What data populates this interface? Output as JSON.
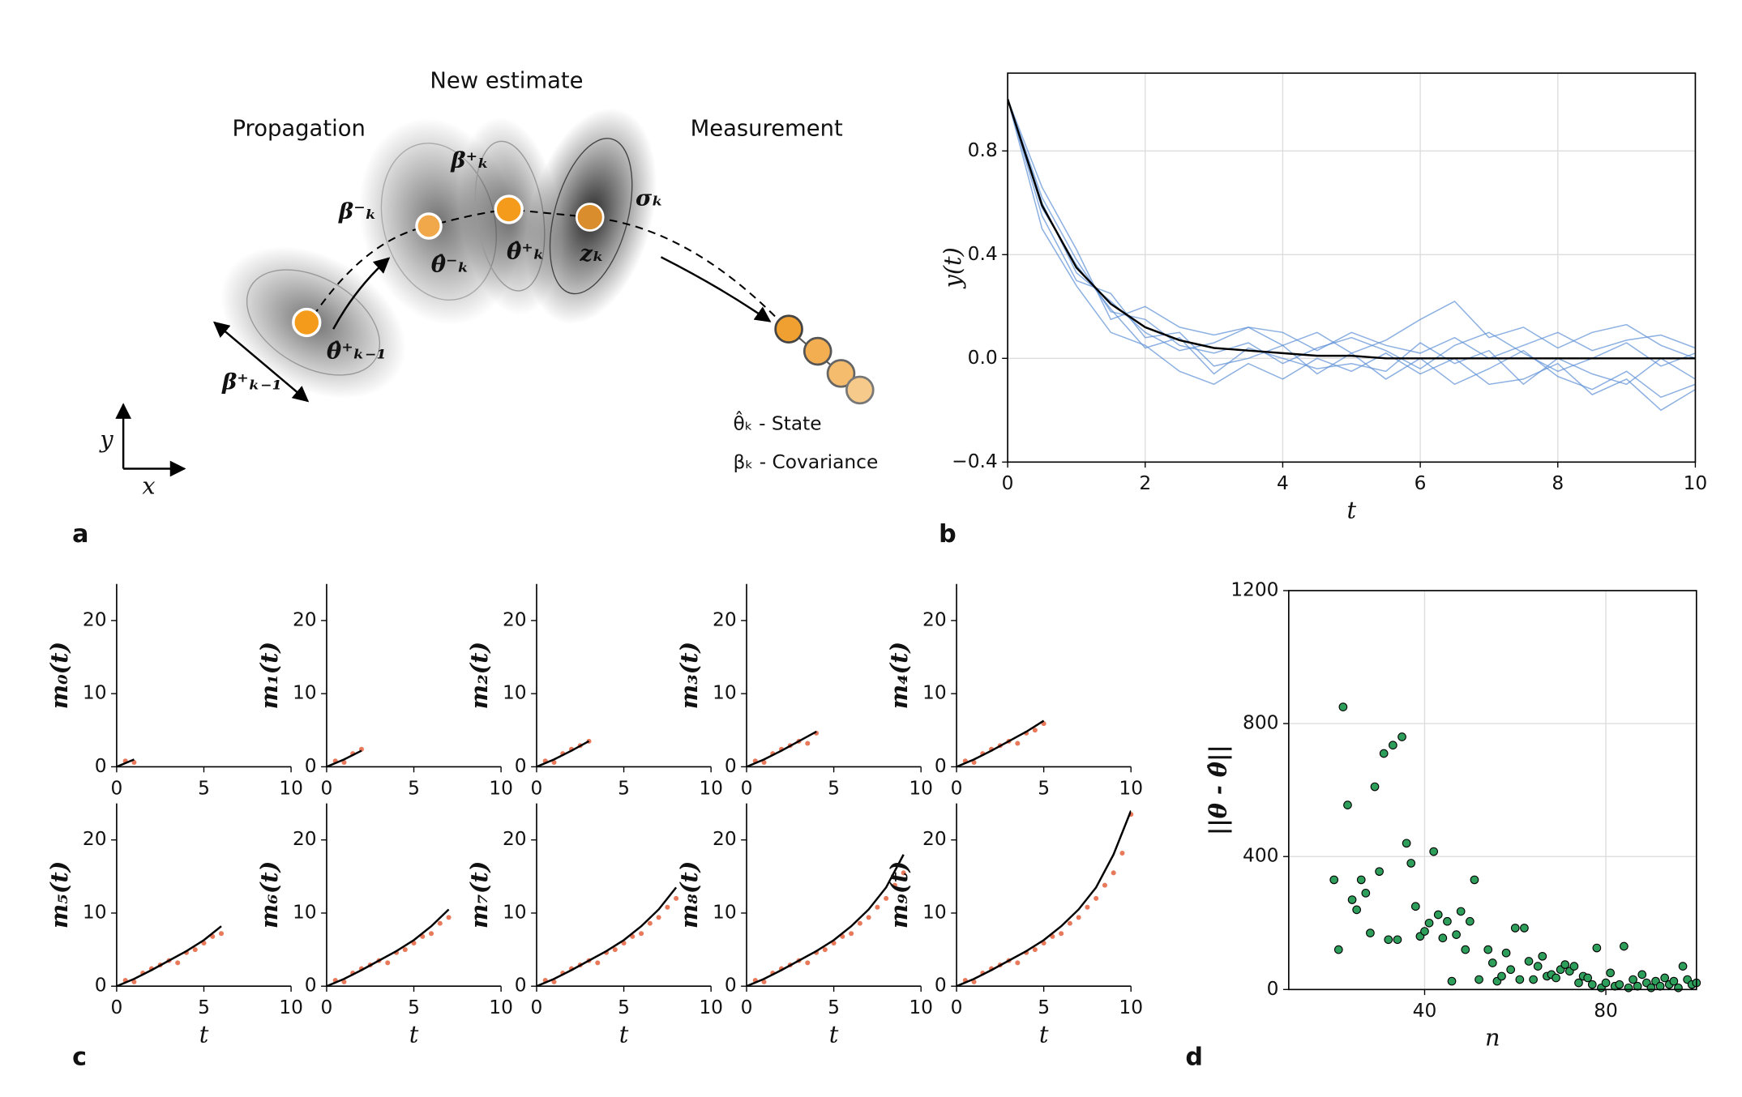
{
  "panel_labels": [
    "a",
    "b",
    "c",
    "d"
  ],
  "diagram": {
    "headings": [
      "Propagation",
      "New estimate",
      "Measurement"
    ],
    "labels": [
      "β⁺ₖ₋₁",
      "θ̂⁺ₖ₋₁",
      "β⁻ₖ",
      "θ̂⁻ₖ",
      "β⁺ₖ",
      "θ̂⁺ₖ",
      "zₖ",
      "σₖ"
    ],
    "legend": [
      "θ̂ₖ - State",
      "βₖ - Covariance"
    ],
    "axes": [
      "y",
      "x"
    ]
  },
  "chart_data": [
    {
      "type": "line",
      "xlabel": "t",
      "ylabel": "y(t)",
      "grid": true,
      "x": [
        0,
        0.5,
        1,
        1.5,
        2,
        2.5,
        3,
        3.5,
        4,
        4.5,
        5,
        5.5,
        6,
        6.5,
        7,
        7.5,
        8,
        8.5,
        9,
        9.5,
        10
      ],
      "xlim": [
        0,
        10
      ],
      "ylim": [
        -0.4,
        1.1
      ],
      "xticks": [
        0,
        2,
        4,
        6,
        8,
        10
      ],
      "yticks": [
        {
          "value": -0.4,
          "label": "−0.4"
        },
        {
          "value": 0,
          "label": "0.0"
        },
        0.4,
        0.8
      ],
      "series": [
        {
          "color": "#5b8fd6",
          "values": [
            1,
            0.62,
            0.38,
            0.18,
            0.15,
            0.05,
            0.02,
            0.06,
            -0.02,
            0.04,
            0.08,
            0.03,
            -0.04,
            0.05,
            0.1,
            0.02,
            -0.05,
            0.0,
            0.06,
            -0.03,
            0.02
          ]
        },
        {
          "color": "#5b8fd6",
          "values": [
            1,
            0.55,
            0.3,
            0.25,
            0.08,
            0.1,
            -0.03,
            0.0,
            0.05,
            -0.06,
            0.02,
            -0.08,
            0.0,
            -0.1,
            -0.04,
            0.03,
            -0.07,
            -0.12,
            -0.05,
            -0.15,
            -0.1
          ]
        },
        {
          "color": "#5b8fd6",
          "values": [
            1,
            0.66,
            0.42,
            0.15,
            0.2,
            0.12,
            0.09,
            0.12,
            0.05,
            0.1,
            0.02,
            0.07,
            0.15,
            0.22,
            0.08,
            0.12,
            0.04,
            0.1,
            0.13,
            0.05,
            0.0
          ]
        },
        {
          "color": "#5b8fd6",
          "values": [
            1,
            0.5,
            0.28,
            0.1,
            0.05,
            -0.05,
            -0.1,
            -0.02,
            -0.08,
            0.0,
            -0.05,
            0.02,
            -0.06,
            0.0,
            -0.1,
            -0.08,
            -0.02,
            -0.14,
            -0.08,
            -0.2,
            -0.12
          ]
        },
        {
          "color": "#5b8fd6",
          "values": [
            1,
            0.6,
            0.33,
            0.22,
            0.1,
            0.03,
            0.06,
            0.12,
            0.1,
            0.03,
            0.1,
            0.05,
            0.02,
            0.08,
            0.0,
            0.05,
            0.1,
            0.03,
            0.07,
            0.09,
            0.04
          ]
        },
        {
          "color": "#5b8fd6",
          "values": [
            1,
            0.58,
            0.36,
            0.19,
            0.04,
            0.08,
            -0.06,
            0.04,
            0.0,
            -0.04,
            -0.02,
            -0.05,
            0.06,
            -0.02,
            0.03,
            -0.1,
            0.0,
            -0.06,
            -0.1,
            0.0,
            -0.08
          ]
        },
        {
          "color": "#000000",
          "values": [
            1,
            0.59,
            0.35,
            0.21,
            0.12,
            0.07,
            0.04,
            0.03,
            0.02,
            0.01,
            0.01,
            0,
            0,
            0,
            0,
            0,
            0,
            0,
            0,
            0,
            0
          ]
        }
      ]
    },
    {
      "type": "scatter",
      "ylabel": "m₀(t)",
      "xlim": [
        0,
        10
      ],
      "ylim": [
        0,
        25
      ],
      "xticks": [
        0,
        5,
        10
      ],
      "yticks": [
        0,
        10,
        20
      ],
      "color": "#e8795a",
      "line_color": "#000000",
      "x": [
        0.5,
        1
      ],
      "values": [
        0.8,
        0.6
      ],
      "line_x": [
        0,
        1
      ],
      "line_values": [
        0,
        1
      ]
    },
    {
      "type": "scatter",
      "ylabel": "m₁(t)",
      "xlim": [
        0,
        10
      ],
      "ylim": [
        0,
        25
      ],
      "xticks": [
        0,
        5,
        10
      ],
      "yticks": [
        0,
        10,
        20
      ],
      "color": "#e8795a",
      "line_color": "#000000",
      "x": [
        0.5,
        1,
        1.5,
        2
      ],
      "values": [
        0.8,
        0.6,
        1.8,
        2.4
      ],
      "line_x": [
        0,
        1,
        2
      ],
      "line_values": [
        0,
        1,
        2.2
      ]
    },
    {
      "type": "scatter",
      "ylabel": "m₂(t)",
      "xlim": [
        0,
        10
      ],
      "ylim": [
        0,
        25
      ],
      "xticks": [
        0,
        5,
        10
      ],
      "yticks": [
        0,
        10,
        20
      ],
      "color": "#e8795a",
      "line_color": "#000000",
      "x": [
        0.5,
        1,
        1.5,
        2,
        2.5,
        3
      ],
      "values": [
        0.8,
        0.6,
        1.8,
        2.4,
        2.9,
        3.5
      ],
      "line_x": [
        0,
        1,
        2,
        3
      ],
      "line_values": [
        0,
        1,
        2.2,
        3.5
      ]
    },
    {
      "type": "scatter",
      "ylabel": "m₃(t)",
      "xlim": [
        0,
        10
      ],
      "ylim": [
        0,
        25
      ],
      "xticks": [
        0,
        5,
        10
      ],
      "yticks": [
        0,
        10,
        20
      ],
      "color": "#e8795a",
      "line_color": "#000000",
      "x": [
        0.5,
        1,
        1.5,
        2,
        2.5,
        3,
        3.5,
        4
      ],
      "values": [
        0.8,
        0.6,
        1.8,
        2.4,
        2.9,
        3.5,
        3.2,
        4.6
      ],
      "line_x": [
        0,
        1,
        2,
        3,
        4
      ],
      "line_values": [
        0,
        1,
        2.2,
        3.5,
        4.8
      ]
    },
    {
      "type": "scatter",
      "ylabel": "m₄(t)",
      "xlim": [
        0,
        10
      ],
      "ylim": [
        0,
        25
      ],
      "xticks": [
        0,
        5,
        10
      ],
      "yticks": [
        0,
        10,
        20
      ],
      "color": "#e8795a",
      "line_color": "#000000",
      "x": [
        0.5,
        1,
        1.5,
        2,
        2.5,
        3,
        3.5,
        4,
        4.5,
        5
      ],
      "values": [
        0.8,
        0.6,
        1.8,
        2.4,
        2.9,
        3.5,
        3.2,
        4.6,
        5.0,
        5.9
      ],
      "line_x": [
        0,
        1,
        2,
        3,
        4,
        5
      ],
      "line_values": [
        0,
        1,
        2.2,
        3.5,
        4.8,
        6.3
      ]
    },
    {
      "type": "scatter",
      "ylabel": "m₅(t)",
      "xlabel": "t",
      "xlim": [
        0,
        10
      ],
      "ylim": [
        0,
        25
      ],
      "xticks": [
        0,
        5,
        10
      ],
      "yticks": [
        0,
        10,
        20
      ],
      "color": "#e8795a",
      "line_color": "#000000",
      "x": [
        0.5,
        1,
        1.5,
        2,
        2.5,
        3,
        3.5,
        4,
        4.5,
        5,
        5.5,
        6
      ],
      "values": [
        0.8,
        0.6,
        1.8,
        2.4,
        2.9,
        3.5,
        3.2,
        4.6,
        5.0,
        5.9,
        6.8,
        7.2
      ],
      "line_x": [
        0,
        1,
        2,
        3,
        4,
        5,
        6
      ],
      "line_values": [
        0,
        1,
        2.2,
        3.5,
        4.8,
        6.3,
        8.2
      ]
    },
    {
      "type": "scatter",
      "ylabel": "m₆(t)",
      "xlabel": "t",
      "xlim": [
        0,
        10
      ],
      "ylim": [
        0,
        25
      ],
      "xticks": [
        0,
        5,
        10
      ],
      "yticks": [
        0,
        10,
        20
      ],
      "color": "#e8795a",
      "line_color": "#000000",
      "x": [
        0.5,
        1,
        1.5,
        2,
        2.5,
        3,
        3.5,
        4,
        4.5,
        5,
        5.5,
        6,
        6.5,
        7
      ],
      "values": [
        0.8,
        0.6,
        1.8,
        2.4,
        2.9,
        3.5,
        3.2,
        4.6,
        5.0,
        5.9,
        6.8,
        7.2,
        8.6,
        9.4
      ],
      "line_x": [
        0,
        1,
        2,
        3,
        4,
        5,
        6,
        7
      ],
      "line_values": [
        0,
        1,
        2.2,
        3.5,
        4.8,
        6.3,
        8.2,
        10.5
      ]
    },
    {
      "type": "scatter",
      "ylabel": "m₇(t)",
      "xlabel": "t",
      "xlim": [
        0,
        10
      ],
      "ylim": [
        0,
        25
      ],
      "xticks": [
        0,
        5,
        10
      ],
      "yticks": [
        0,
        10,
        20
      ],
      "color": "#e8795a",
      "line_color": "#000000",
      "x": [
        0.5,
        1,
        1.5,
        2,
        2.5,
        3,
        3.5,
        4,
        4.5,
        5,
        5.5,
        6,
        6.5,
        7,
        7.5,
        8
      ],
      "values": [
        0.8,
        0.6,
        1.8,
        2.4,
        2.9,
        3.5,
        3.2,
        4.6,
        5.0,
        5.9,
        6.8,
        7.2,
        8.6,
        9.4,
        10.8,
        12.0
      ],
      "line_x": [
        0,
        1,
        2,
        3,
        4,
        5,
        6,
        7,
        8
      ],
      "line_values": [
        0,
        1,
        2.2,
        3.5,
        4.8,
        6.3,
        8.2,
        10.5,
        13.5
      ]
    },
    {
      "type": "scatter",
      "ylabel": "m₈(t)",
      "xlabel": "t",
      "xlim": [
        0,
        10
      ],
      "ylim": [
        0,
        25
      ],
      "xticks": [
        0,
        5,
        10
      ],
      "yticks": [
        0,
        10,
        20
      ],
      "color": "#e8795a",
      "line_color": "#000000",
      "x": [
        0.5,
        1,
        1.5,
        2,
        2.5,
        3,
        3.5,
        4,
        4.5,
        5,
        5.5,
        6,
        6.5,
        7,
        7.5,
        8,
        8.5,
        9
      ],
      "values": [
        0.8,
        0.6,
        1.8,
        2.4,
        2.9,
        3.5,
        3.2,
        4.6,
        5.0,
        5.9,
        6.8,
        7.2,
        8.6,
        9.4,
        10.8,
        12.0,
        13.8,
        15.5
      ],
      "line_x": [
        0,
        1,
        2,
        3,
        4,
        5,
        6,
        7,
        8,
        9
      ],
      "line_values": [
        0,
        1,
        2.2,
        3.5,
        4.8,
        6.3,
        8.2,
        10.5,
        13.5,
        18
      ]
    },
    {
      "type": "scatter",
      "ylabel": "m₉(t)",
      "xlabel": "t",
      "xlim": [
        0,
        10
      ],
      "ylim": [
        0,
        25
      ],
      "xticks": [
        0,
        5,
        10
      ],
      "yticks": [
        0,
        10,
        20
      ],
      "color": "#e8795a",
      "line_color": "#000000",
      "x": [
        0.5,
        1,
        1.5,
        2,
        2.5,
        3,
        3.5,
        4,
        4.5,
        5,
        5.5,
        6,
        6.5,
        7,
        7.5,
        8,
        8.5,
        9,
        9.5,
        10
      ],
      "values": [
        0.8,
        0.6,
        1.8,
        2.4,
        2.9,
        3.5,
        3.2,
        4.6,
        5.0,
        5.9,
        6.8,
        7.2,
        8.6,
        9.4,
        10.8,
        12.0,
        13.8,
        15.5,
        18.2,
        23.5
      ],
      "line_x": [
        0,
        1,
        2,
        3,
        4,
        5,
        6,
        7,
        8,
        9,
        10
      ],
      "line_values": [
        0,
        1,
        2.2,
        3.5,
        4.8,
        6.3,
        8.2,
        10.5,
        13.5,
        18,
        24
      ]
    },
    {
      "type": "scatter",
      "xlabel": "n",
      "ylabel": "||θ - θ̂||",
      "grid": true,
      "xlim": [
        10,
        100
      ],
      "ylim": [
        0,
        1200
      ],
      "xticks": [
        40,
        80
      ],
      "yticks": [
        0,
        400,
        800,
        1200
      ],
      "color": "#2e9e5b",
      "x": [
        20,
        21,
        22,
        23,
        24,
        25,
        26,
        27,
        28,
        29,
        30,
        31,
        32,
        33,
        34,
        35,
        36,
        37,
        38,
        39,
        40,
        41,
        42,
        43,
        44,
        45,
        46,
        47,
        48,
        49,
        50,
        51,
        52,
        54,
        55,
        56,
        57,
        58,
        59,
        60,
        61,
        62,
        63,
        64,
        65,
        66,
        67,
        68,
        69,
        70,
        71,
        72,
        73,
        74,
        75,
        76,
        77,
        78,
        79,
        80,
        81,
        82,
        83,
        84,
        85,
        86,
        87,
        88,
        89,
        90,
        91,
        92,
        93,
        94,
        95,
        96,
        97,
        98,
        99,
        100
      ],
      "values": [
        330,
        120,
        850,
        555,
        270,
        240,
        330,
        290,
        170,
        610,
        355,
        710,
        150,
        735,
        150,
        760,
        440,
        380,
        250,
        160,
        175,
        200,
        415,
        225,
        155,
        205,
        25,
        165,
        235,
        120,
        205,
        330,
        30,
        120,
        80,
        25,
        40,
        110,
        60,
        185,
        30,
        185,
        85,
        30,
        70,
        100,
        40,
        45,
        35,
        60,
        75,
        55,
        70,
        20,
        40,
        35,
        15,
        125,
        5,
        20,
        50,
        10,
        15,
        130,
        5,
        30,
        10,
        45,
        20,
        5,
        25,
        10,
        35,
        15,
        25,
        5,
        70,
        30,
        15,
        20
      ]
    }
  ]
}
